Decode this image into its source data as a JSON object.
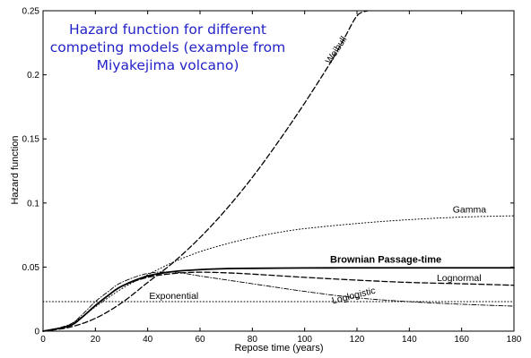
{
  "chart_data": {
    "type": "line",
    "title_lines": [
      "Hazard function for different",
      "competing models (example from",
      "Miyakejima volcano)"
    ],
    "xlabel": "Repose time (years)",
    "ylabel": "Hazard function",
    "xlim": [
      0,
      180
    ],
    "ylim": [
      0,
      0.25
    ],
    "xticks": [
      0,
      20,
      40,
      60,
      80,
      100,
      120,
      140,
      160,
      180
    ],
    "yticks": [
      0,
      0.05,
      0.1,
      0.15,
      0.2,
      0.25
    ],
    "ytick_labels": [
      "0",
      "0.05",
      "0.1",
      "0.15",
      "0.2",
      "0.25"
    ],
    "grid": false,
    "colors": {
      "title": "#2323c8",
      "lines": "#000000"
    },
    "series": [
      {
        "name": "Weibull",
        "style": "dashed",
        "label_angle": -57,
        "label_at": [
          113,
          0.218
        ],
        "x": [
          0,
          10,
          20,
          30,
          40,
          50,
          60,
          70,
          80,
          90,
          100,
          110,
          115,
          120,
          124
        ],
        "y": [
          0,
          0.003,
          0.01,
          0.022,
          0.038,
          0.054,
          0.073,
          0.095,
          0.12,
          0.148,
          0.178,
          0.21,
          0.228,
          0.246,
          0.25
        ]
      },
      {
        "name": "Gamma",
        "style": "dotted",
        "label_angle": 0,
        "label_at": [
          163,
          0.0925
        ],
        "x": [
          0,
          10,
          20,
          30,
          40,
          50,
          60,
          70,
          80,
          90,
          100,
          120,
          140,
          160,
          180
        ],
        "y": [
          0,
          0.005,
          0.019,
          0.033,
          0.044,
          0.054,
          0.062,
          0.068,
          0.073,
          0.077,
          0.08,
          0.084,
          0.087,
          0.089,
          0.09
        ]
      },
      {
        "name": "Brownian Passage-time",
        "style": "solid-bold",
        "label_angle": 0,
        "label_at": [
          131,
          0.0535
        ],
        "x": [
          0,
          10,
          15,
          20,
          25,
          30,
          40,
          50,
          60,
          70,
          80,
          100,
          120,
          140,
          160,
          180
        ],
        "y": [
          0,
          0.004,
          0.011,
          0.02,
          0.028,
          0.035,
          0.043,
          0.0465,
          0.048,
          0.0488,
          0.049,
          0.0493,
          0.0494,
          0.0494,
          0.0494,
          0.0494
        ]
      },
      {
        "name": "Lognormal",
        "style": "dashed",
        "label_angle": 0,
        "label_at": [
          159,
          0.039
        ],
        "x": [
          0,
          10,
          15,
          20,
          25,
          30,
          40,
          50,
          60,
          70,
          80,
          100,
          120,
          140,
          160,
          180
        ],
        "y": [
          0,
          0.004,
          0.011,
          0.02,
          0.028,
          0.035,
          0.042,
          0.045,
          0.046,
          0.0455,
          0.0445,
          0.042,
          0.0398,
          0.038,
          0.037,
          0.0358
        ]
      },
      {
        "name": "Loglogistic",
        "style": "dashdot",
        "label_angle": -14,
        "label_at": [
          119,
          0.0255
        ],
        "x": [
          0,
          10,
          15,
          20,
          25,
          30,
          40,
          50,
          60,
          70,
          80,
          100,
          120,
          140,
          160,
          180
        ],
        "y": [
          0,
          0.005,
          0.013,
          0.023,
          0.031,
          0.038,
          0.045,
          0.046,
          0.043,
          0.04,
          0.037,
          0.031,
          0.026,
          0.023,
          0.021,
          0.0195
        ]
      },
      {
        "name": "Exponential",
        "style": "dotted",
        "label_angle": 0,
        "label_at": [
          50,
          0.025
        ],
        "x": [
          0,
          180
        ],
        "y": [
          0.023,
          0.023
        ]
      }
    ]
  }
}
